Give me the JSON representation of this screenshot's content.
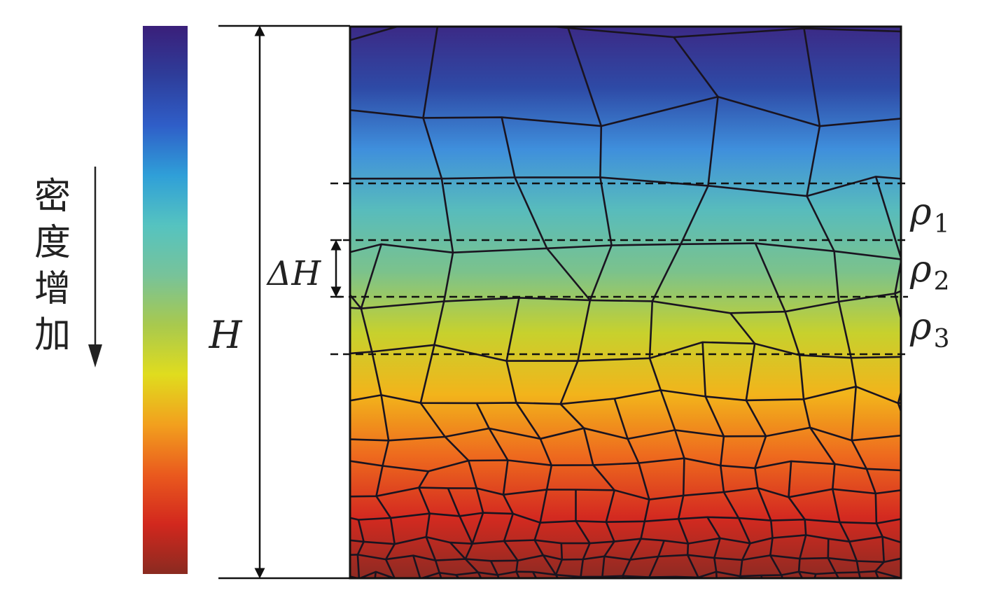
{
  "legend": {
    "label_chars": [
      "密",
      "度",
      "增",
      "加"
    ],
    "colorbar_stops": [
      "#3a1f7a",
      "#2e3d9a",
      "#2f5ec8",
      "#2f9fd8",
      "#55c3c0",
      "#77c39a",
      "#a8c94e",
      "#e0dc1e",
      "#f2a01e",
      "#ea5a1e",
      "#d2281e",
      "#8a2a20"
    ]
  },
  "annotations": {
    "total_height_label": "H",
    "step_label": "ΔH",
    "layers": [
      {
        "symbol": "ρ",
        "subscript": "1"
      },
      {
        "symbol": "ρ",
        "subscript": "2"
      },
      {
        "symbol": "ρ",
        "subscript": "3"
      }
    ]
  },
  "panel": {
    "gradient_stops": [
      "#3b2a86",
      "#2e4aa6",
      "#3f8fdc",
      "#58bcbc",
      "#7bc28c",
      "#c7d12d",
      "#f2b41b",
      "#ee6a1e",
      "#d42a20",
      "#8e2a22"
    ]
  }
}
